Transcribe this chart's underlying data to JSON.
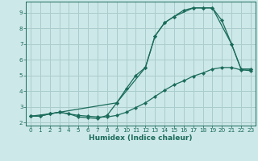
{
  "xlabel": "Humidex (Indice chaleur)",
  "bg_color": "#cde8e8",
  "grid_color": "#aacccc",
  "line_color": "#1a6b5a",
  "xlim": [
    -0.5,
    23.5
  ],
  "ylim": [
    1.8,
    9.7
  ],
  "xticks": [
    0,
    1,
    2,
    3,
    4,
    5,
    6,
    7,
    8,
    9,
    10,
    11,
    12,
    13,
    14,
    15,
    16,
    17,
    18,
    19,
    20,
    21,
    22,
    23
  ],
  "yticks": [
    2,
    3,
    4,
    5,
    6,
    7,
    8,
    9
  ],
  "line1_x": [
    0,
    1,
    2,
    3,
    4,
    5,
    6,
    7,
    8,
    9,
    10,
    11,
    12,
    13,
    14,
    15,
    16,
    17,
    18,
    19,
    20,
    21,
    22,
    23
  ],
  "line1_y": [
    2.4,
    2.4,
    2.55,
    2.65,
    2.55,
    2.35,
    2.3,
    2.25,
    2.45,
    3.25,
    4.15,
    5.0,
    5.5,
    7.5,
    8.35,
    8.75,
    9.15,
    9.3,
    9.3,
    9.3,
    8.5,
    7.0,
    5.4,
    5.4
  ],
  "line2_x": [
    0,
    1,
    2,
    3,
    4,
    5,
    6,
    7,
    8,
    9,
    10,
    11,
    12,
    13,
    14,
    15,
    16,
    17,
    18,
    19,
    20,
    21,
    22,
    23
  ],
  "line2_y": [
    2.4,
    2.4,
    2.55,
    2.65,
    2.55,
    2.45,
    2.4,
    2.35,
    2.35,
    2.45,
    2.65,
    2.95,
    3.25,
    3.65,
    4.05,
    4.4,
    4.65,
    4.95,
    5.15,
    5.4,
    5.5,
    5.5,
    5.35,
    5.3
  ],
  "line3_x": [
    0,
    2,
    3,
    9,
    12,
    13,
    14,
    15,
    17,
    18,
    19,
    21,
    22,
    23
  ],
  "line3_y": [
    2.4,
    2.55,
    2.65,
    3.25,
    5.5,
    7.5,
    8.35,
    8.75,
    9.3,
    9.3,
    9.3,
    7.0,
    5.4,
    5.4
  ]
}
